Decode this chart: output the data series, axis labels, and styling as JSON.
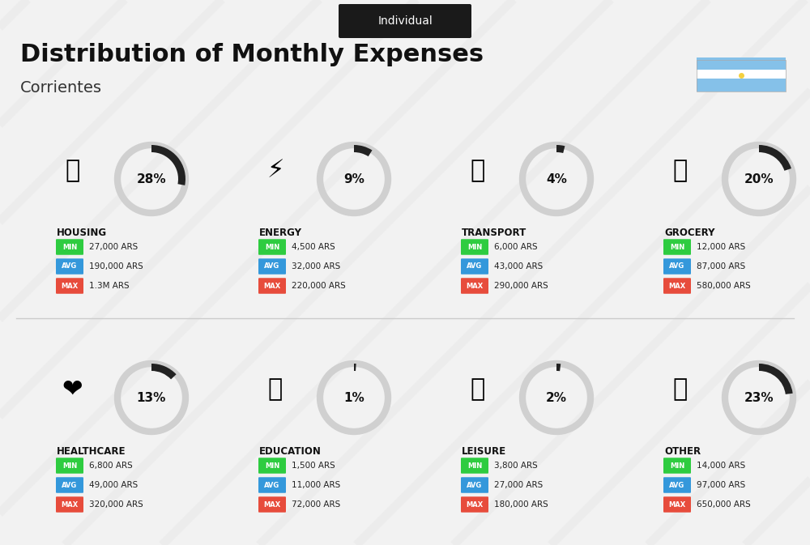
{
  "title": "Distribution of Monthly Expenses",
  "subtitle": "Individual",
  "location": "Corrientes",
  "bg_color": "#f0f0f0",
  "categories": [
    {
      "name": "HOUSING",
      "pct": 28,
      "min": "27,000 ARS",
      "avg": "190,000 ARS",
      "max": "1.3M ARS",
      "col": 0,
      "row": 0
    },
    {
      "name": "ENERGY",
      "pct": 9,
      "min": "4,500 ARS",
      "avg": "32,000 ARS",
      "max": "220,000 ARS",
      "col": 1,
      "row": 0
    },
    {
      "name": "TRANSPORT",
      "pct": 4,
      "min": "6,000 ARS",
      "avg": "43,000 ARS",
      "max": "290,000 ARS",
      "col": 2,
      "row": 0
    },
    {
      "name": "GROCERY",
      "pct": 20,
      "min": "12,000 ARS",
      "avg": "87,000 ARS",
      "max": "580,000 ARS",
      "col": 3,
      "row": 0
    },
    {
      "name": "HEALTHCARE",
      "pct": 13,
      "min": "6,800 ARS",
      "avg": "49,000 ARS",
      "max": "320,000 ARS",
      "col": 0,
      "row": 1
    },
    {
      "name": "EDUCATION",
      "pct": 1,
      "min": "1,500 ARS",
      "avg": "11,000 ARS",
      "max": "72,000 ARS",
      "col": 1,
      "row": 1
    },
    {
      "name": "LEISURE",
      "pct": 2,
      "min": "3,800 ARS",
      "avg": "27,000 ARS",
      "max": "180,000 ARS",
      "col": 2,
      "row": 1
    },
    {
      "name": "OTHER",
      "pct": 23,
      "min": "14,000 ARS",
      "avg": "97,000 ARS",
      "max": "650,000 ARS",
      "col": 3,
      "row": 1
    }
  ],
  "min_color": "#2ecc40",
  "avg_color": "#3498db",
  "max_color": "#e74c3c",
  "label_color": "#ffffff",
  "text_color": "#222222",
  "arc_bg_color": "#d0d0d0",
  "arc_fill_color": "#222222",
  "category_name_color": "#111111",
  "flag_light_blue": "#74b9ff",
  "flag_blue": "#0984e3"
}
